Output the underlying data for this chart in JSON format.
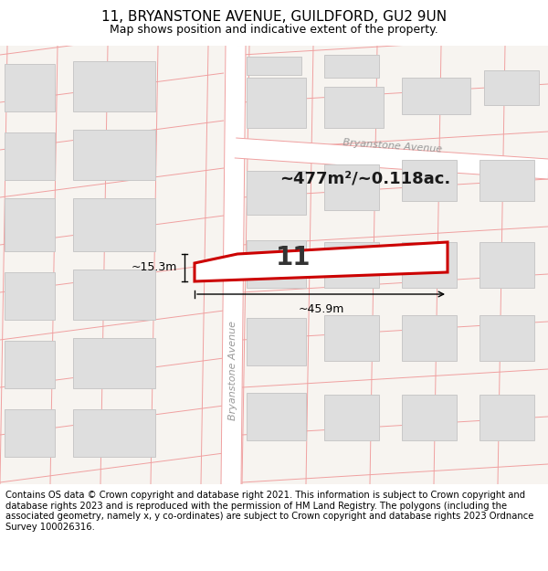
{
  "title": "11, BRYANSTONE AVENUE, GUILDFORD, GU2 9UN",
  "subtitle": "Map shows position and indicative extent of the property.",
  "footer": "Contains OS data © Crown copyright and database right 2021. This information is subject to Crown copyright and database rights 2023 and is reproduced with the permission of HM Land Registry. The polygons (including the associated geometry, namely x, y co-ordinates) are subject to Crown copyright and database rights 2023 Ordnance Survey 100026316.",
  "map_bg": "#f7f4f0",
  "road_color": "#ffffff",
  "road_line_color": "#f0a0a0",
  "building_color": "#dedede",
  "building_edge": "#c8c8c8",
  "plot_edge": "#cc0000",
  "plot_lw": 2.2,
  "area_text": "~477m²/~0.118ac.",
  "number_text": "11",
  "dim_width": "~45.9m",
  "dim_height": "~15.3m",
  "road_label_h": "Bryanstone Avenue",
  "road_label_v": "Bryanstone Avenue",
  "title_fontsize": 11,
  "subtitle_fontsize": 9,
  "footer_fontsize": 7.2
}
